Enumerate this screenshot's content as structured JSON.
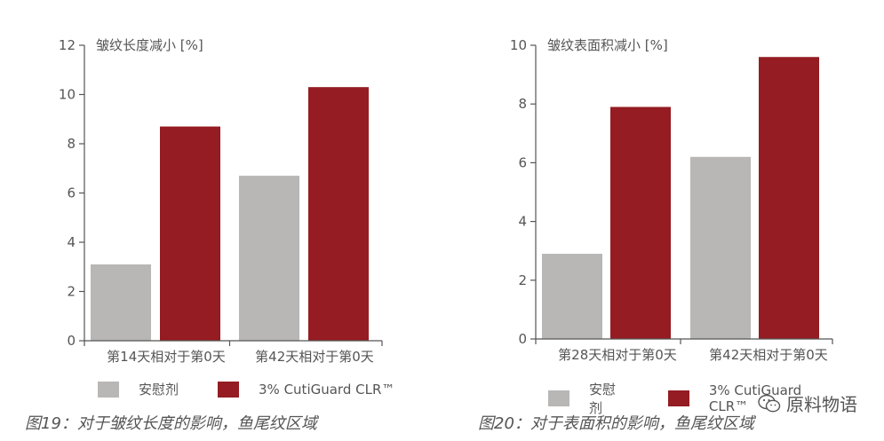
{
  "colors": {
    "placebo": "#b8b7b5",
    "active": "#941c22",
    "axis": "#555555"
  },
  "charts": [
    {
      "chart_data": {
        "type": "bar",
        "ylabel": "皱纹长度减小 [%]",
        "ylim": [
          0,
          12
        ],
        "yticks": [
          0,
          2,
          4,
          6,
          8,
          10,
          12
        ],
        "categories": [
          "第14天相对于第0天",
          "第42天相对于第0天"
        ],
        "series": [
          {
            "name": "安慰剂",
            "values": [
              3.1,
              6.7
            ]
          },
          {
            "name": "3% CutiGuard CLR™",
            "values": [
              8.7,
              10.3
            ]
          }
        ]
      },
      "caption": "图19：对于皱纹长度的影响，鱼尾纹区域"
    },
    {
      "chart_data": {
        "type": "bar",
        "ylabel": "皱纹表面积减小 [%]",
        "ylim": [
          0,
          10
        ],
        "yticks": [
          0,
          2,
          4,
          6,
          8,
          10
        ],
        "categories": [
          "第28天相对于第0天",
          "第42天相对于第0天"
        ],
        "series": [
          {
            "name": "安慰剂",
            "values": [
              2.9,
              6.2
            ]
          },
          {
            "name": "3% CutiGuard CLR™",
            "values": [
              7.9,
              9.6
            ]
          }
        ]
      },
      "caption": "图20：对于表面积的影响，鱼尾纹区域"
    }
  ],
  "watermark": {
    "text": "原料物语",
    "icon": "wechat-icon"
  }
}
